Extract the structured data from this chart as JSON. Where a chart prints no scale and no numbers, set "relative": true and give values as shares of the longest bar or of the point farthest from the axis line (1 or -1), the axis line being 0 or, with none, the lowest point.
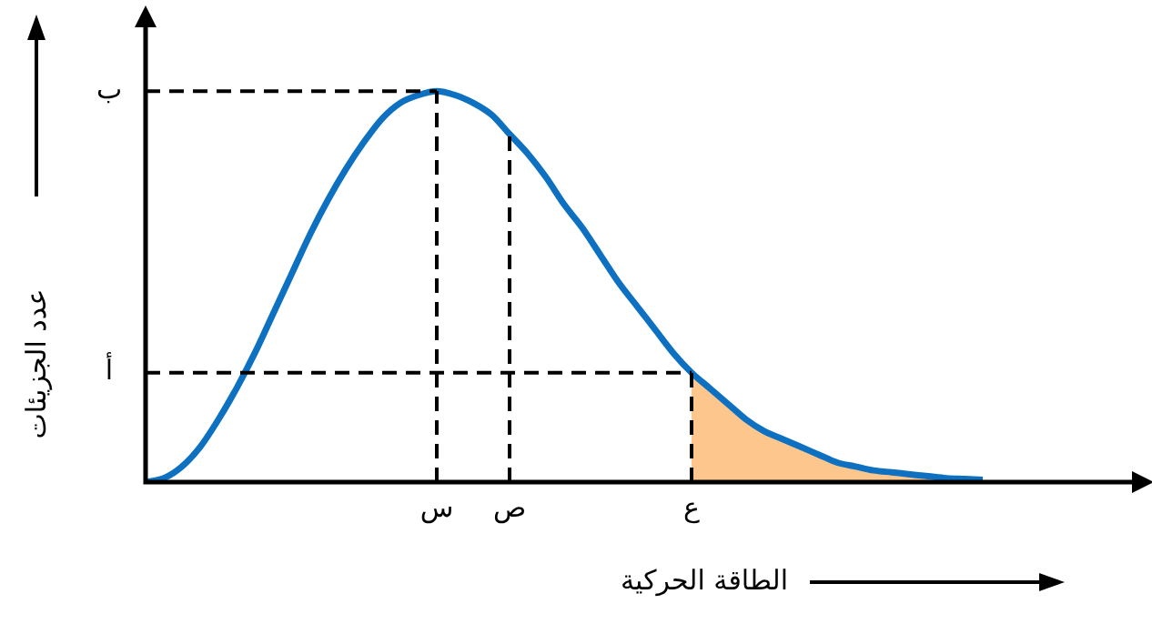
{
  "chart_data": {
    "type": "line",
    "xlabel": "الطاقة الحركية",
    "ylabel": "عدد الجزيئات",
    "relative": true,
    "marker": "none",
    "categories": [
      null,
      null,
      null,
      null,
      null,
      null,
      null,
      null,
      null,
      null,
      null,
      null,
      null,
      null,
      null,
      null,
      "س",
      null,
      null,
      null,
      "ص",
      null,
      null,
      null,
      null,
      null,
      null,
      null,
      null,
      null,
      "ع",
      null,
      null,
      null,
      null,
      null,
      null,
      null,
      null,
      null,
      null,
      null,
      null,
      null,
      null,
      null,
      null,
      null,
      null,
      null,
      null,
      null,
      null,
      null,
      null
    ],
    "series": [
      {
        "color": "#0e70c0",
        "values": [
          0,
          0.01,
          0.04,
          0.09,
          0.16,
          0.24,
          0.33,
          0.43,
          0.53,
          0.63,
          0.72,
          0.8,
          0.87,
          0.93,
          0.97,
          0.99,
          1,
          0.99,
          0.97,
          0.94,
          0.89,
          0.84,
          0.78,
          0.71,
          0.65,
          0.58,
          0.51,
          0.45,
          0.39,
          0.33,
          0.28,
          0.24,
          0.2,
          0.16,
          0.13,
          0.11,
          0.09,
          0.07,
          0.05,
          0.04,
          0.03,
          0.025,
          0.02,
          0.015,
          0.01,
          0.008,
          0.006,
          null,
          null,
          null,
          null,
          null,
          null,
          null,
          null
        ]
      },
      {
        "type": "area",
        "color": "#fdc68c",
        "values": [
          null,
          null,
          null,
          null,
          null,
          null,
          null,
          null,
          null,
          null,
          null,
          null,
          null,
          null,
          null,
          null,
          null,
          null,
          null,
          null,
          null,
          null,
          null,
          null,
          null,
          null,
          null,
          null,
          null,
          null,
          0.28,
          0.24,
          0.2,
          0.16,
          0.13,
          0.11,
          0.09,
          0.07,
          0.05,
          0.04,
          0.03,
          0.025,
          0.02,
          0.015,
          0.01,
          0.008,
          0.006,
          null,
          null,
          null,
          null,
          null,
          null,
          null,
          null
        ]
      }
    ],
    "ref_lines": [
      {
        "axis": "y",
        "value": 1,
        "label": "ب",
        "line_style": "dashed",
        "color": "#000000"
      },
      {
        "axis": "y",
        "value": 0.28,
        "label": "أ",
        "line_style": "dashed",
        "color": "#000000"
      },
      {
        "axis": "x",
        "value": "س",
        "line_style": "dashed",
        "color": "#000000"
      },
      {
        "axis": "x",
        "value": "ص",
        "line_style": "dashed",
        "color": "#000000"
      },
      {
        "axis": "x",
        "value": "ع",
        "line_style": "dashed",
        "color": "#000000"
      }
    ]
  }
}
